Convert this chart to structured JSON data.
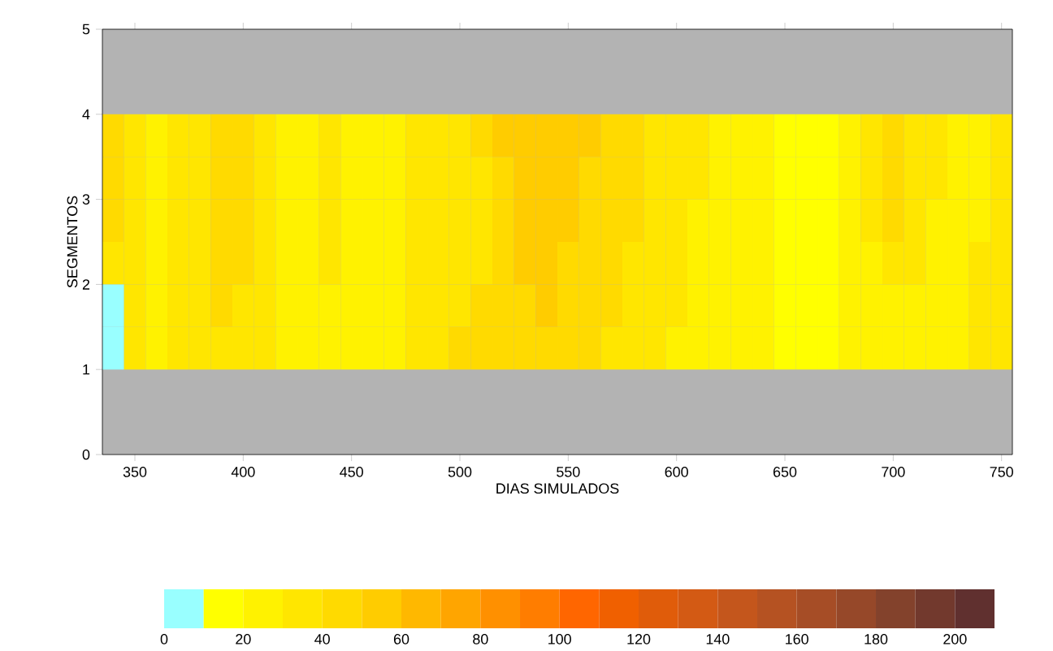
{
  "chart_data": {
    "type": "heatmap",
    "xlabel": "DIAS SIMULADOS",
    "ylabel": "SEGMENTOS",
    "x": [
      340,
      350,
      360,
      370,
      380,
      390,
      400,
      410,
      420,
      430,
      440,
      450,
      460,
      470,
      480,
      490,
      500,
      510,
      520,
      530,
      540,
      550,
      560,
      570,
      580,
      590,
      600,
      610,
      620,
      630,
      640,
      650,
      660,
      670,
      680,
      690,
      700,
      710,
      720,
      730,
      740,
      750
    ],
    "y": [
      3.75,
      3.25,
      2.75,
      2.25,
      1.75,
      1.25
    ],
    "cells": [
      [
        45,
        35,
        25,
        35,
        35,
        45,
        45,
        35,
        25,
        25,
        35,
        25,
        25,
        25,
        35,
        35,
        35,
        45,
        55,
        55,
        55,
        55,
        55,
        45,
        45,
        35,
        35,
        35,
        25,
        25,
        25,
        15,
        15,
        15,
        25,
        35,
        45,
        35,
        35,
        25,
        25,
        35
      ],
      [
        45,
        35,
        25,
        35,
        35,
        45,
        45,
        35,
        25,
        25,
        35,
        25,
        25,
        25,
        35,
        35,
        35,
        35,
        45,
        55,
        55,
        55,
        45,
        45,
        45,
        35,
        35,
        35,
        25,
        25,
        25,
        15,
        15,
        15,
        25,
        35,
        45,
        35,
        35,
        25,
        25,
        35
      ],
      [
        45,
        35,
        25,
        35,
        35,
        45,
        45,
        35,
        25,
        25,
        35,
        25,
        25,
        25,
        35,
        35,
        35,
        35,
        45,
        55,
        55,
        55,
        45,
        45,
        45,
        35,
        35,
        25,
        25,
        25,
        25,
        15,
        15,
        15,
        25,
        35,
        45,
        35,
        25,
        25,
        25,
        35
      ],
      [
        35,
        35,
        25,
        35,
        35,
        45,
        45,
        35,
        25,
        25,
        35,
        25,
        25,
        25,
        35,
        35,
        35,
        35,
        45,
        55,
        55,
        45,
        45,
        45,
        35,
        35,
        35,
        25,
        25,
        25,
        25,
        15,
        15,
        15,
        25,
        25,
        35,
        35,
        25,
        25,
        35,
        35
      ],
      [
        5,
        35,
        25,
        35,
        35,
        45,
        35,
        35,
        25,
        25,
        25,
        25,
        25,
        25,
        35,
        35,
        35,
        45,
        45,
        45,
        55,
        45,
        45,
        45,
        35,
        35,
        35,
        25,
        25,
        25,
        25,
        15,
        15,
        15,
        25,
        25,
        25,
        25,
        25,
        25,
        35,
        35
      ],
      [
        5,
        35,
        25,
        35,
        35,
        35,
        35,
        35,
        25,
        25,
        25,
        25,
        25,
        25,
        35,
        35,
        45,
        45,
        45,
        45,
        45,
        45,
        45,
        35,
        35,
        35,
        25,
        25,
        25,
        25,
        25,
        15,
        15,
        15,
        25,
        25,
        25,
        25,
        25,
        25,
        35,
        35
      ]
    ],
    "colors": [
      "#99ffff",
      "#ffff00",
      "#fff200",
      "#ffe600",
      "#ffda00",
      "#ffcc00",
      "#ffb800",
      "#ffa500",
      "#ff9000",
      "#ff7d00",
      "#ff6600",
      "#f06000",
      "#e05c0a",
      "#d35a14",
      "#c4561c",
      "#b55222",
      "#a64d26",
      "#964829",
      "#83422c",
      "#72392d",
      "#60302f"
    ],
    "clim": [
      0,
      210
    ],
    "cticks": [
      0,
      20,
      40,
      60,
      80,
      100,
      120,
      140,
      160,
      180,
      200
    ],
    "xlim": [
      335,
      755
    ],
    "xticks": [
      350,
      400,
      450,
      500,
      550,
      600,
      650,
      700,
      750
    ],
    "ylim": [
      0,
      5
    ],
    "yticks": [
      0,
      1,
      2,
      3,
      4,
      5
    ]
  }
}
